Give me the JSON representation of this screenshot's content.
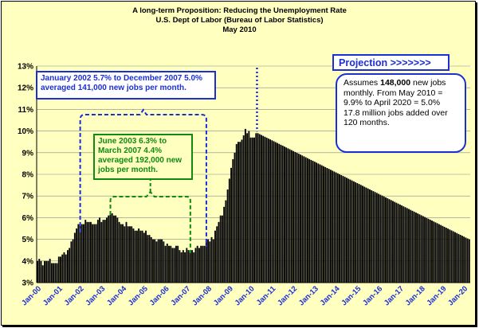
{
  "chart_data": {
    "type": "bar",
    "title": "A long-term Proposition: Reducing the Unemployment Rate",
    "subtitle": [
      "U.S. Dept of Labor (Bureau of Labor Statistics)",
      "May 2010"
    ],
    "xlabel": "",
    "ylabel": "",
    "ylim": [
      3,
      13
    ],
    "y_tick_labels": [
      "3%",
      "4%",
      "5%",
      "6%",
      "7%",
      "8%",
      "9%",
      "10%",
      "11%",
      "12%",
      "13%"
    ],
    "x_tick_labels": [
      "Jan-00",
      "Jan-01",
      "Jan-02",
      "Jan-03",
      "Jan-04",
      "Jan-05",
      "Jan-06",
      "Jan-07",
      "Jan-08",
      "Jan-09",
      "Jan-10",
      "Jan-11",
      "Jan-12",
      "Jan-13",
      "Jan-14",
      "Jan-15",
      "Jan-16",
      "Jan-17",
      "Jan-18",
      "Jan-19",
      "Jan-20"
    ],
    "grid": true,
    "legend": "none",
    "series": [
      {
        "period": "Jan-00 to Apr-10",
        "values": [
          4.0,
          4.1,
          4.0,
          3.8,
          4.0,
          4.0,
          4.0,
          4.1,
          3.9,
          3.9,
          3.9,
          3.9,
          4.2,
          4.2,
          4.3,
          4.4,
          4.3,
          4.5,
          4.6,
          4.9,
          5.0,
          5.3,
          5.5,
          5.7,
          5.7,
          5.7,
          5.7,
          5.9,
          5.8,
          5.8,
          5.8,
          5.7,
          5.7,
          5.7,
          5.9,
          6.0,
          5.8,
          5.9,
          5.9,
          6.0,
          6.1,
          6.3,
          6.2,
          6.1,
          6.1,
          6.0,
          5.8,
          5.7,
          5.7,
          5.6,
          5.8,
          5.6,
          5.6,
          5.6,
          5.5,
          5.4,
          5.4,
          5.5,
          5.4,
          5.4,
          5.3,
          5.4,
          5.2,
          5.2,
          5.1,
          5.0,
          5.0,
          4.9,
          5.0,
          5.0,
          5.0,
          4.9,
          4.7,
          4.8,
          4.7,
          4.7,
          4.6,
          4.6,
          4.7,
          4.7,
          4.5,
          4.4,
          4.5,
          4.4,
          4.6,
          4.5,
          4.4,
          4.5,
          4.4,
          4.6,
          4.7,
          4.6,
          4.7,
          4.7,
          4.7,
          5.0,
          5.0,
          4.9,
          5.1,
          5.0,
          5.4,
          5.6,
          5.8,
          6.1,
          6.1,
          6.5,
          6.8,
          7.3,
          7.8,
          8.3,
          8.7,
          9.0,
          9.4,
          9.5,
          9.5,
          9.6,
          9.8,
          10.1,
          9.9,
          10.0,
          9.7,
          9.7,
          9.7,
          9.9
        ],
        "color": "#000000"
      },
      {
        "period": "May-10 to Apr-20 (projection)",
        "start": 9.9,
        "end": 5.0,
        "months": 120,
        "color": "#000000"
      }
    ],
    "projection_marker": "May-10"
  },
  "annotations": {
    "blue_box": [
      "January 2002 5.7% to December 2007 5.0%",
      "averaged 141,000 new jobs per month."
    ],
    "green_box": [
      "June 2003 6.3% to",
      "March 2007 4.4%",
      "averaged 192,000 new",
      "jobs per month."
    ],
    "projection_label": "Projection >>>>>>>",
    "assumption_parts": [
      "Assumes ",
      "148,000",
      " new jobs monthly.  From May 2010 = 9.9% to  April 2020 = 5.0% 17.8 million jobs added over 120 months."
    ],
    "colors": {
      "blue": "#1b2fd6",
      "green": "#118a11",
      "background": "#ffffc0",
      "bars": "#000000"
    }
  }
}
